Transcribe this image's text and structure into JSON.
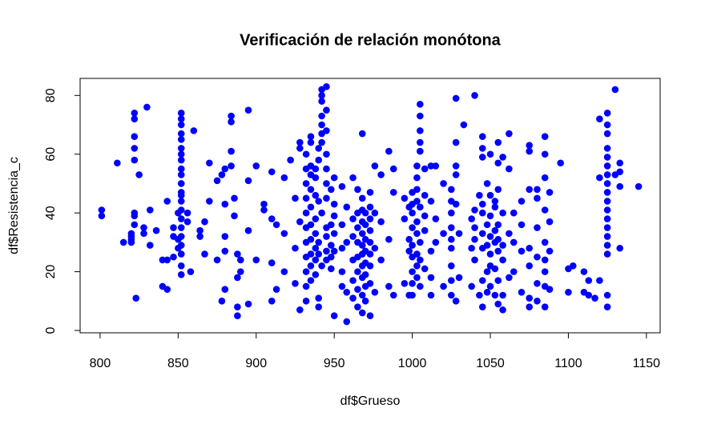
{
  "chart_data": {
    "type": "scatter",
    "title": "Verificación de relación monótona",
    "x_label": "df$Grueso",
    "y_label": "df$Resistencia_c",
    "color": "#0000ff",
    "xlim": [
      787.2,
      1158.8
    ],
    "ylim": [
      -0.8,
      85.8
    ],
    "xticks": [
      800,
      850,
      900,
      950,
      1000,
      1050,
      1100,
      1150
    ],
    "yticks": [
      0,
      20,
      40,
      60,
      80
    ],
    "x": [
      801,
      801,
      811,
      815,
      820,
      820,
      820,
      820,
      822,
      822,
      822,
      822,
      822,
      822,
      822,
      822,
      823,
      825,
      828,
      828,
      830,
      832,
      832,
      836,
      840,
      840,
      843,
      843,
      843,
      847,
      847,
      847,
      850,
      850,
      850,
      852,
      852,
      852,
      852,
      852,
      852,
      852,
      852,
      852,
      852,
      852,
      852,
      852,
      852,
      852,
      852,
      852,
      852,
      852,
      852,
      852,
      852,
      856,
      856,
      858,
      860,
      864,
      864,
      867,
      867,
      870,
      870,
      875,
      875,
      878,
      878,
      880,
      880,
      880,
      880,
      880,
      884,
      884,
      884,
      884,
      886,
      886,
      888,
      888,
      888,
      888,
      890,
      890,
      895,
      895,
      895,
      895,
      900,
      900,
      905,
      905,
      910,
      910,
      910,
      910,
      913,
      913,
      918,
      918,
      918,
      922,
      925,
      925,
      925,
      928,
      928,
      928,
      928,
      932,
      932,
      932,
      932,
      932,
      932,
      932,
      932,
      932,
      932,
      932,
      935,
      935,
      935,
      935,
      935,
      935,
      935,
      935,
      935,
      935,
      935,
      938,
      938,
      938,
      938,
      938,
      938,
      938,
      938,
      940,
      940,
      940,
      940,
      940,
      940,
      940,
      942,
      942,
      942,
      942,
      942,
      942,
      942,
      942,
      942,
      945,
      945,
      945,
      945,
      945,
      945,
      945,
      945,
      945,
      945,
      945,
      948,
      948,
      948,
      948,
      948,
      950,
      950,
      950,
      950,
      950,
      950,
      955,
      955,
      955,
      955,
      955,
      958,
      958,
      958,
      958,
      962,
      962,
      962,
      962,
      962,
      962,
      965,
      965,
      965,
      965,
      965,
      965,
      965,
      965,
      968,
      968,
      968,
      968,
      968,
      968,
      968,
      968,
      968,
      968,
      968,
      970,
      970,
      970,
      970,
      970,
      970,
      970,
      970,
      973,
      973,
      973,
      973,
      973,
      973,
      973,
      973,
      973,
      976,
      976,
      976,
      976,
      980,
      980,
      980,
      985,
      985,
      985,
      988,
      988,
      988,
      995,
      995,
      995,
      998,
      998,
      998,
      998,
      1000,
      1000,
      1000,
      1000,
      1000,
      1000,
      1000,
      1000,
      1000,
      1003,
      1003,
      1003,
      1003,
      1003,
      1003,
      1003,
      1003,
      1003,
      1005,
      1005,
      1005,
      1005,
      1005,
      1005,
      1005,
      1005,
      1005,
      1008,
      1008,
      1008,
      1008,
      1008,
      1012,
      1012,
      1012,
      1012,
      1012,
      1015,
      1015,
      1015,
      1020,
      1020,
      1020,
      1025,
      1025,
      1025,
      1025,
      1025,
      1025,
      1025,
      1025,
      1025,
      1028,
      1028,
      1028,
      1028,
      1028,
      1028,
      1030,
      1030,
      1033,
      1038,
      1038,
      1038,
      1040,
      1040,
      1040,
      1040,
      1040,
      1043,
      1043,
      1045,
      1045,
      1045,
      1045,
      1045,
      1045,
      1045,
      1045,
      1045,
      1048,
      1048,
      1048,
      1048,
      1048,
      1050,
      1050,
      1050,
      1050,
      1050,
      1050,
      1050,
      1053,
      1053,
      1053,
      1053,
      1053,
      1053,
      1055,
      1055,
      1055,
      1055,
      1055,
      1055,
      1055,
      1055,
      1058,
      1058,
      1058,
      1058,
      1058,
      1058,
      1062,
      1062,
      1062,
      1062,
      1065,
      1065,
      1065,
      1070,
      1070,
      1070,
      1070,
      1075,
      1075,
      1075,
      1075,
      1075,
      1075,
      1075,
      1080,
      1080,
      1080,
      1080,
      1080,
      1080,
      1085,
      1085,
      1085,
      1085,
      1085,
      1085,
      1085,
      1085,
      1085,
      1088,
      1088,
      1088,
      1088,
      1095,
      1100,
      1100,
      1103,
      1110,
      1110,
      1113,
      1113,
      1117,
      1120,
      1120,
      1120,
      1125,
      1125,
      1125,
      1125,
      1125,
      1125,
      1125,
      1125,
      1125,
      1125,
      1125,
      1125,
      1125,
      1125,
      1125,
      1125,
      1125,
      1125,
      1130,
      1130,
      1133,
      1133,
      1133,
      1133,
      1145
    ],
    "y": [
      41,
      39,
      57,
      30,
      30,
      33,
      32,
      31,
      74,
      72,
      66,
      62,
      58,
      40,
      39,
      36,
      11,
      53,
      33,
      35,
      76,
      29,
      41,
      34,
      24,
      15,
      44,
      14,
      24,
      25,
      35,
      32,
      28,
      31,
      40,
      74,
      72,
      70,
      67,
      65,
      62,
      58,
      55,
      50,
      47,
      44,
      41,
      38,
      35,
      32,
      29,
      26,
      22,
      19,
      60,
      53,
      46,
      37,
      40,
      20,
      68,
      32,
      34,
      26,
      37,
      44,
      57,
      24,
      51,
      10,
      53,
      14,
      27,
      43,
      32,
      55,
      61,
      56,
      73,
      71,
      45,
      39,
      5,
      8,
      18,
      26,
      20,
      24,
      75,
      51,
      9,
      34,
      56,
      24,
      43,
      41,
      10,
      23,
      38,
      54,
      14,
      36,
      33,
      52,
      20,
      58,
      45,
      16,
      28,
      64,
      62,
      7,
      37,
      55,
      50,
      45,
      40,
      35,
      30,
      25,
      20,
      15,
      60,
      10,
      53,
      48,
      42,
      36,
      31,
      26,
      22,
      17,
      66,
      64,
      56,
      46,
      38,
      33,
      28,
      24,
      19,
      55,
      52,
      62,
      58,
      44,
      30,
      26,
      8,
      11,
      80,
      78,
      73,
      70,
      67,
      64,
      82,
      40,
      22,
      75,
      68,
      60,
      55,
      50,
      45,
      35,
      32,
      27,
      24,
      83,
      36,
      29,
      25,
      21,
      48,
      52,
      43,
      39,
      33,
      27,
      5,
      49,
      36,
      28,
      20,
      15,
      42,
      30,
      13,
      3,
      38,
      32,
      24,
      17,
      11,
      52,
      40,
      35,
      30,
      25,
      20,
      14,
      8,
      48,
      67,
      45,
      41,
      37,
      33,
      29,
      26,
      22,
      18,
      12,
      6,
      40,
      36,
      31,
      27,
      23,
      19,
      15,
      10,
      47,
      42,
      38,
      34,
      30,
      26,
      22,
      16,
      5,
      56,
      40,
      28,
      13,
      53,
      37,
      24,
      15,
      61,
      31,
      12,
      47,
      55,
      16,
      45,
      38,
      12,
      27,
      31,
      42,
      47,
      43,
      40,
      35,
      29,
      25,
      20,
      16,
      12,
      56,
      52,
      48,
      44,
      37,
      33,
      26,
      22,
      18,
      77,
      73,
      68,
      64,
      61,
      42,
      30,
      24,
      15,
      55,
      46,
      39,
      34,
      21,
      56,
      44,
      27,
      18,
      12,
      56,
      38,
      30,
      50,
      33,
      15,
      40,
      35,
      31,
      28,
      22,
      17,
      12,
      48,
      44,
      79,
      64,
      56,
      53,
      43,
      10,
      33,
      18,
      70,
      38,
      15,
      28,
      80,
      41,
      35,
      31,
      24,
      12,
      46,
      59,
      43,
      40,
      33,
      28,
      17,
      8,
      62,
      66,
      50,
      36,
      29,
      20,
      13,
      60,
      46,
      39,
      32,
      26,
      22,
      15,
      44,
      42,
      34,
      30,
      21,
      12,
      57,
      48,
      36,
      31,
      27,
      17,
      9,
      64,
      59,
      40,
      29,
      24,
      12,
      7,
      67,
      55,
      33,
      18,
      40,
      30,
      20,
      44,
      36,
      27,
      13,
      63,
      61,
      48,
      28,
      22,
      11,
      8,
      48,
      45,
      35,
      25,
      16,
      10,
      66,
      60,
      52,
      41,
      30,
      24,
      20,
      15,
      8,
      47,
      37,
      27,
      14,
      57,
      13,
      21,
      22,
      20,
      13,
      12,
      17,
      11,
      72,
      52,
      17,
      74,
      70,
      67,
      62,
      59,
      56,
      53,
      50,
      47,
      44,
      41,
      38,
      35,
      32,
      29,
      26,
      8,
      12,
      82,
      53,
      57,
      54,
      49,
      28,
      49
    ]
  }
}
